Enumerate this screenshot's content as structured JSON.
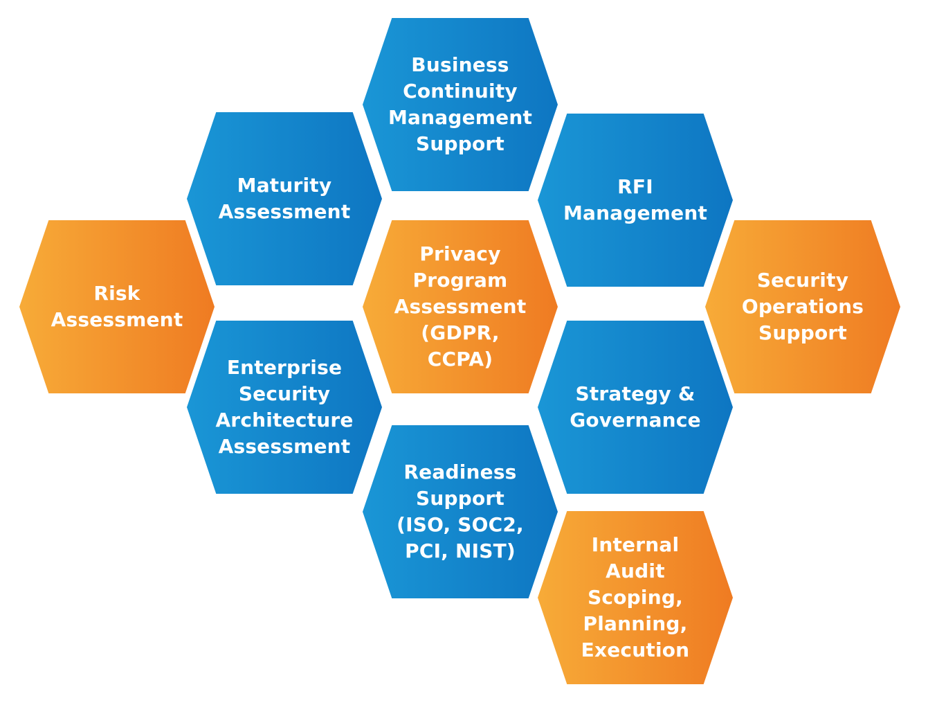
{
  "colors": {
    "blue_start": "#1a96d6",
    "blue_end": "#0e76c2",
    "orange_start": "#f7ab38",
    "orange_end": "#ef7b22",
    "text": "#ffffff"
  },
  "hexagons": {
    "bcm": {
      "label": "Business\nContinuity\nManagement\nSupport",
      "color": "blue"
    },
    "maturity": {
      "label": "Maturity\nAssessment",
      "color": "blue"
    },
    "rfi": {
      "label": "RFI\nManagement",
      "color": "blue"
    },
    "risk": {
      "label": "Risk\nAssessment",
      "color": "orange"
    },
    "privacy": {
      "label": "Privacy\nProgram\nAssessment\n(GDPR,\nCCPA)",
      "color": "orange"
    },
    "secops": {
      "label": "Security\nOperations\nSupport",
      "color": "orange"
    },
    "esa": {
      "label": "Enterprise\nSecurity\nArchitecture\nAssessment",
      "color": "blue"
    },
    "strategy": {
      "label": "Strategy &\nGovernance",
      "color": "blue"
    },
    "readiness": {
      "label": "Readiness\nSupport\n(ISO, SOC2,\nPCI, NIST)",
      "color": "blue"
    },
    "audit": {
      "label": "Internal\nAudit\nScoping,\nPlanning,\nExecution",
      "color": "orange"
    }
  }
}
